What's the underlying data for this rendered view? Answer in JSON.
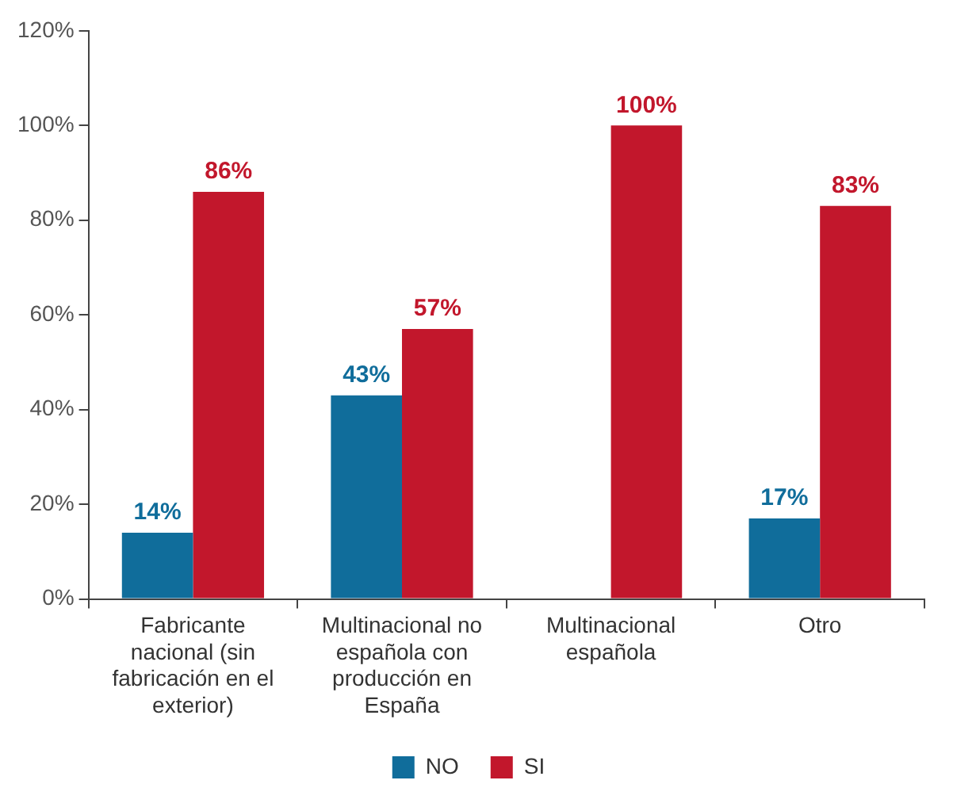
{
  "chart_data": {
    "type": "bar",
    "categories": [
      "Fabricante nacional (sin fabricación en el exterior)",
      "Multinacional no española con producción en España",
      "Multinacional española",
      "Otro"
    ],
    "series": [
      {
        "name": "NO",
        "color": "#106d9b",
        "values": [
          14,
          43,
          null,
          17
        ],
        "value_labels": [
          "14%",
          "43%",
          null,
          "17%"
        ]
      },
      {
        "name": "SI",
        "color": "#c2172c",
        "values": [
          86,
          57,
          100,
          83
        ],
        "value_labels": [
          "86%",
          "57%",
          "100%",
          "83%"
        ]
      }
    ],
    "ylim": [
      0,
      120
    ],
    "yticks": [
      {
        "value": 0,
        "label": "0%"
      },
      {
        "value": 20,
        "label": "20%"
      },
      {
        "value": 40,
        "label": "40%"
      },
      {
        "value": 60,
        "label": "60%"
      },
      {
        "value": 80,
        "label": "80%"
      },
      {
        "value": 100,
        "label": "100%"
      },
      {
        "value": 120,
        "label": "120%"
      }
    ],
    "grid": false,
    "legend": "bottom"
  }
}
